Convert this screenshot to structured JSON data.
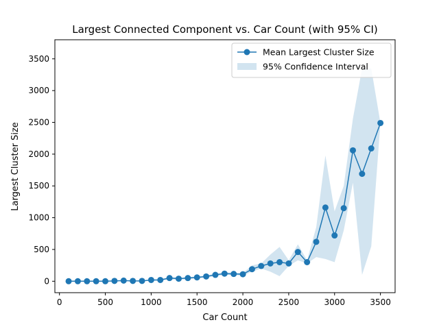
{
  "chart_data": {
    "type": "line",
    "title": "Largest Connected Component vs. Car Count (with 95% CI)",
    "xlabel": "Car Count",
    "ylabel": "Largest Cluster Size",
    "xlim": [
      -50,
      3660
    ],
    "ylim": [
      -180,
      3800
    ],
    "xticks": [
      0,
      500,
      1000,
      1500,
      2000,
      2500,
      3000,
      3500
    ],
    "yticks": [
      0,
      500,
      1000,
      1500,
      2000,
      2500,
      3000,
      3500
    ],
    "grid": false,
    "legend_position": "top-right",
    "colors": {
      "line": "#1f77b4",
      "band": "#1f77b4"
    },
    "series": [
      {
        "name": "Mean Largest Cluster Size",
        "x": [
          100,
          200,
          300,
          400,
          500,
          600,
          700,
          800,
          900,
          1000,
          1100,
          1200,
          1300,
          1400,
          1500,
          1600,
          1700,
          1800,
          1900,
          2000,
          2100,
          2200,
          2300,
          2400,
          2500,
          2600,
          2700,
          2800,
          2900,
          3000,
          3100,
          3200,
          3300,
          3400,
          3500
        ],
        "y": [
          0,
          0,
          0,
          0,
          0,
          5,
          10,
          5,
          5,
          20,
          20,
          50,
          40,
          50,
          60,
          75,
          100,
          120,
          115,
          110,
          190,
          240,
          280,
          300,
          280,
          460,
          300,
          620,
          1160,
          720,
          1150,
          2060,
          1690,
          2090,
          2490
        ]
      }
    ],
    "band": {
      "name": "95% Confidence Interval",
      "x": [
        100,
        200,
        300,
        400,
        500,
        600,
        700,
        800,
        900,
        1000,
        1100,
        1200,
        1300,
        1400,
        1500,
        1600,
        1700,
        1800,
        1900,
        2000,
        2100,
        2200,
        2300,
        2400,
        2500,
        2600,
        2700,
        2800,
        2900,
        3000,
        3100,
        3200,
        3300,
        3400,
        3500
      ],
      "lower": [
        0,
        0,
        0,
        0,
        0,
        0,
        0,
        0,
        0,
        10,
        10,
        30,
        25,
        35,
        45,
        60,
        80,
        100,
        95,
        90,
        150,
        200,
        150,
        80,
        240,
        330,
        280,
        380,
        350,
        300,
        800,
        1550,
        100,
        550,
        2490
      ],
      "upper": [
        0,
        0,
        0,
        0,
        0,
        10,
        20,
        10,
        10,
        30,
        30,
        70,
        55,
        65,
        75,
        90,
        120,
        140,
        135,
        130,
        250,
        280,
        420,
        540,
        330,
        580,
        330,
        850,
        1980,
        1100,
        1500,
        2560,
        3350,
        3350,
        2490
      ]
    }
  }
}
